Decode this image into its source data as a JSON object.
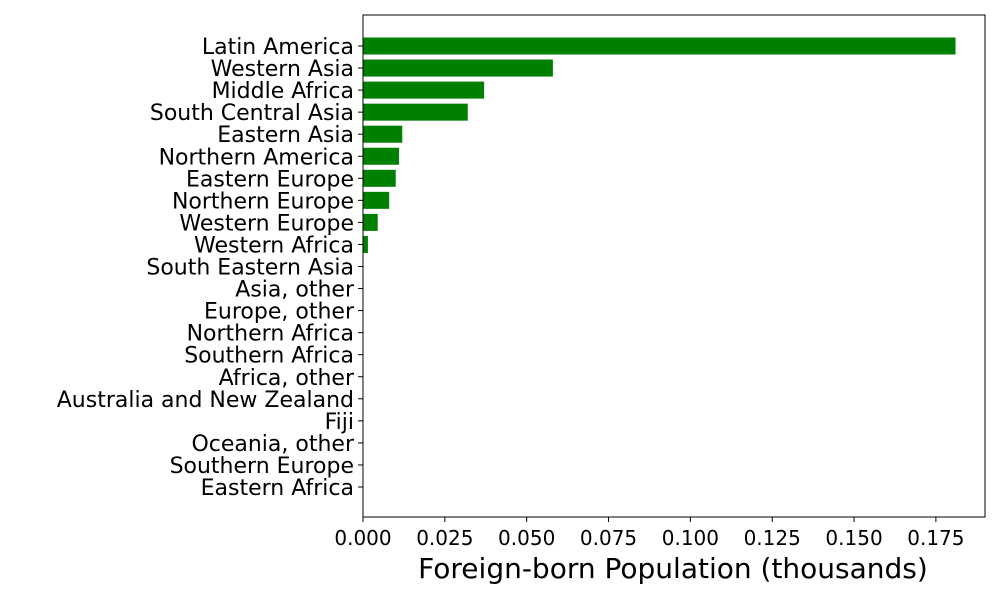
{
  "chart_data": {
    "type": "bar",
    "orientation": "horizontal",
    "categories": [
      "Latin America",
      "Western Asia",
      "Middle Africa",
      "South Central Asia",
      "Eastern Asia",
      "Northern America",
      "Eastern Europe",
      "Northern Europe",
      "Western Europe",
      "Western Africa",
      "South Eastern Asia",
      "Asia, other",
      "Europe, other",
      "Northern Africa",
      "Southern Africa",
      "Africa, other",
      "Australia and New Zealand",
      "Fiji",
      "Oceania, other",
      "Southern Europe",
      "Eastern Africa"
    ],
    "values": [
      0.181,
      0.058,
      0.037,
      0.032,
      0.012,
      0.011,
      0.01,
      0.008,
      0.0045,
      0.0015,
      0,
      0,
      0,
      0,
      0,
      0,
      0,
      0,
      0,
      0,
      0
    ],
    "title": "",
    "xlabel": "Foreign-born Population (thousands)",
    "ylabel": "",
    "xlim": [
      0,
      0.19
    ],
    "xticks": [
      "0.000",
      "0.025",
      "0.050",
      "0.075",
      "0.100",
      "0.125",
      "0.150",
      "0.175"
    ],
    "bar_color": "#008000",
    "grid": false,
    "legend": "none"
  }
}
